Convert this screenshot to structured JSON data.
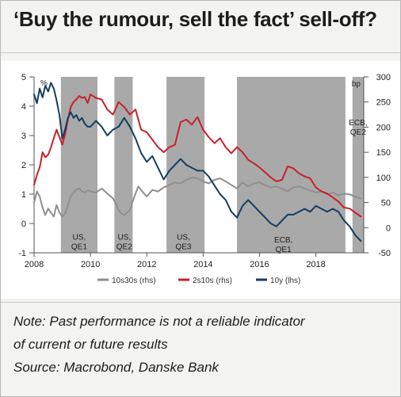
{
  "header": {
    "title": "‘Buy the rumour, sell the fact’ sell-off?"
  },
  "notes": {
    "line1": "Note: Past performance is not a reliable indicator",
    "line2": "of current or future results",
    "line3": "Source: Macrobond, Danske Bank"
  },
  "chart_data": {
    "type": "line",
    "title": "",
    "xlim": [
      2008,
      2019.7
    ],
    "left_axis": {
      "unit": "%",
      "ylim": [
        -1,
        5
      ],
      "ticks": [
        -1,
        0,
        1,
        2,
        3,
        4,
        5
      ]
    },
    "right_axis": {
      "unit": "bp",
      "ylim": [
        -50,
        300
      ],
      "ticks": [
        -50,
        0,
        50,
        100,
        150,
        200,
        250,
        300
      ]
    },
    "x_ticks": [
      2008,
      2010,
      2012,
      2014,
      2016,
      2018
    ],
    "legend_position": "bottom",
    "colors": {
      "s10s30s": "#8f8f8f",
      "s2s10s": "#c8202a",
      "s10y": "#123d63",
      "shade": "#a9a9a9"
    },
    "shaded_periods": [
      {
        "label1": "US,",
        "label2": "QE1",
        "start": 2008.95,
        "end": 2010.25,
        "label_x": 2009.6,
        "label_y": -0.55
      },
      {
        "label1": "US,",
        "label2": "QE2",
        "start": 2010.85,
        "end": 2011.5,
        "label_x": 2011.2,
        "label_y": -0.55
      },
      {
        "label1": "US,",
        "label2": "QE3",
        "start": 2012.7,
        "end": 2014.05,
        "label_x": 2013.3,
        "label_y": -0.55
      },
      {
        "label1": "ECB,",
        "label2": "QE1",
        "start": 2015.2,
        "end": 2019.05,
        "label_x": 2016.85,
        "label_y": -0.65
      },
      {
        "label1": "ECB,",
        "label2": "QE2",
        "start": 2019.3,
        "end": 2019.7,
        "label_x": 2019.5,
        "label_y": 3.35
      }
    ],
    "series": [
      {
        "name": "10s30s (rhs)",
        "axis": "right",
        "key": "s10s30s",
        "x": [
          2008.0,
          2008.1,
          2008.2,
          2008.3,
          2008.4,
          2008.5,
          2008.6,
          2008.7,
          2008.8,
          2008.9,
          2009.0,
          2009.1,
          2009.2,
          2009.3,
          2009.4,
          2009.5,
          2009.6,
          2009.7,
          2009.8,
          2009.9,
          2010.0,
          2010.2,
          2010.4,
          2010.6,
          2010.8,
          2010.9,
          2011.0,
          2011.1,
          2011.2,
          2011.3,
          2011.4,
          2011.5,
          2011.6,
          2011.7,
          2011.8,
          2011.9,
          2012.0,
          2012.2,
          2012.4,
          2012.6,
          2012.8,
          2013.0,
          2013.2,
          2013.4,
          2013.6,
          2013.8,
          2014.0,
          2014.2,
          2014.4,
          2014.6,
          2014.8,
          2015.0,
          2015.2,
          2015.4,
          2015.6,
          2015.8,
          2016.0,
          2016.2,
          2016.4,
          2016.6,
          2016.8,
          2017.0,
          2017.2,
          2017.4,
          2017.6,
          2017.8,
          2018.0,
          2018.2,
          2018.4,
          2018.6,
          2018.8,
          2019.0,
          2019.2,
          2019.4,
          2019.6
        ],
        "values": [
          50,
          72,
          62,
          40,
          25,
          38,
          30,
          22,
          45,
          30,
          22,
          28,
          45,
          62,
          70,
          75,
          78,
          72,
          70,
          74,
          72,
          70,
          78,
          68,
          58,
          48,
          35,
          28,
          25,
          30,
          35,
          52,
          68,
          82,
          75,
          68,
          62,
          75,
          72,
          80,
          85,
          90,
          88,
          95,
          100,
          98,
          92,
          88,
          95,
          98,
          92,
          85,
          78,
          90,
          82,
          88,
          90,
          85,
          80,
          82,
          78,
          72,
          80,
          82,
          78,
          74,
          70,
          72,
          66,
          70,
          64,
          68,
          66,
          62,
          58
        ]
      },
      {
        "name": "2s10s (rhs)",
        "axis": "right",
        "key": "s2s10s",
        "x": [
          2008.0,
          2008.1,
          2008.2,
          2008.3,
          2008.4,
          2008.5,
          2008.6,
          2008.7,
          2008.8,
          2008.9,
          2009.0,
          2009.1,
          2009.2,
          2009.3,
          2009.4,
          2009.5,
          2009.6,
          2009.7,
          2009.8,
          2009.9,
          2010.0,
          2010.2,
          2010.4,
          2010.6,
          2010.8,
          2011.0,
          2011.2,
          2011.4,
          2011.6,
          2011.8,
          2012.0,
          2012.2,
          2012.4,
          2012.6,
          2012.8,
          2013.0,
          2013.2,
          2013.4,
          2013.6,
          2013.8,
          2014.0,
          2014.2,
          2014.4,
          2014.6,
          2014.8,
          2015.0,
          2015.2,
          2015.4,
          2015.6,
          2015.8,
          2016.0,
          2016.2,
          2016.4,
          2016.6,
          2016.8,
          2017.0,
          2017.2,
          2017.4,
          2017.6,
          2017.8,
          2018.0,
          2018.2,
          2018.4,
          2018.6,
          2018.8,
          2019.0,
          2019.2,
          2019.4,
          2019.6
        ],
        "values": [
          85,
          105,
          120,
          150,
          140,
          145,
          160,
          178,
          195,
          180,
          165,
          185,
          215,
          240,
          250,
          255,
          262,
          258,
          260,
          248,
          265,
          258,
          255,
          235,
          225,
          250,
          240,
          225,
          235,
          195,
          190,
          175,
          160,
          150,
          160,
          165,
          210,
          215,
          205,
          220,
          195,
          180,
          168,
          178,
          160,
          148,
          160,
          150,
          135,
          128,
          120,
          110,
          100,
          92,
          95,
          122,
          118,
          108,
          102,
          98,
          80,
          72,
          68,
          60,
          52,
          40,
          38,
          30,
          22
        ]
      },
      {
        "name": "10y (lhs)",
        "axis": "left",
        "key": "s10y",
        "x": [
          2008.0,
          2008.1,
          2008.2,
          2008.3,
          2008.4,
          2008.5,
          2008.6,
          2008.7,
          2008.8,
          2008.9,
          2009.0,
          2009.1,
          2009.2,
          2009.3,
          2009.4,
          2009.5,
          2009.6,
          2009.7,
          2009.8,
          2009.9,
          2010.0,
          2010.2,
          2010.4,
          2010.6,
          2010.8,
          2011.0,
          2011.2,
          2011.4,
          2011.6,
          2011.8,
          2012.0,
          2012.2,
          2012.4,
          2012.6,
          2012.8,
          2013.0,
          2013.2,
          2013.4,
          2013.6,
          2013.8,
          2014.0,
          2014.2,
          2014.4,
          2014.6,
          2014.8,
          2015.0,
          2015.2,
          2015.4,
          2015.6,
          2015.8,
          2016.0,
          2016.2,
          2016.4,
          2016.6,
          2016.8,
          2017.0,
          2017.2,
          2017.4,
          2017.6,
          2017.8,
          2018.0,
          2018.2,
          2018.4,
          2018.6,
          2018.8,
          2019.0,
          2019.2,
          2019.4,
          2019.6
        ],
        "values": [
          4.4,
          4.1,
          4.6,
          4.3,
          4.7,
          4.5,
          4.8,
          4.6,
          4.2,
          3.7,
          2.9,
          3.2,
          3.6,
          3.8,
          3.6,
          3.7,
          3.5,
          3.6,
          3.4,
          3.3,
          3.3,
          3.5,
          3.3,
          3.0,
          3.2,
          3.3,
          3.6,
          3.3,
          2.9,
          2.4,
          2.1,
          2.3,
          1.9,
          1.5,
          1.8,
          2.0,
          2.2,
          2.0,
          1.9,
          1.8,
          1.8,
          1.6,
          1.3,
          1.0,
          0.8,
          0.4,
          0.2,
          0.6,
          0.8,
          0.6,
          0.4,
          0.2,
          0.0,
          -0.1,
          0.1,
          0.3,
          0.3,
          0.4,
          0.5,
          0.4,
          0.6,
          0.5,
          0.4,
          0.5,
          0.4,
          0.1,
          -0.1,
          -0.4,
          -0.6
        ]
      }
    ]
  }
}
